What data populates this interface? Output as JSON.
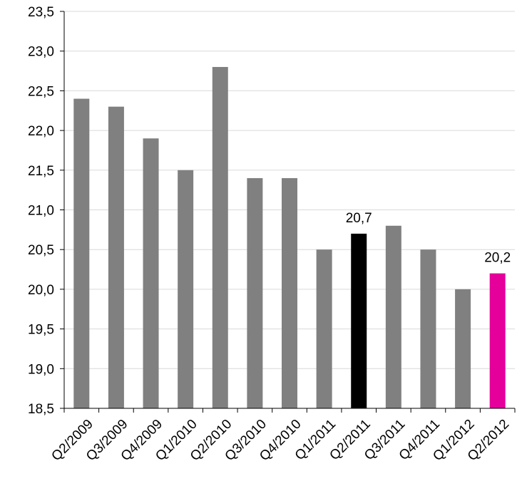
{
  "chart_data": {
    "type": "bar",
    "title": "",
    "xlabel": "",
    "ylabel": "",
    "ylim": [
      18.5,
      23.5
    ],
    "y_ticks": [
      "18,5",
      "19,0",
      "19,5",
      "20,0",
      "20,5",
      "21,0",
      "21,5",
      "22,0",
      "22,5",
      "23,0",
      "23,5"
    ],
    "y_tick_values": [
      18.5,
      19.0,
      19.5,
      20.0,
      20.5,
      21.0,
      21.5,
      22.0,
      22.5,
      23.0,
      23.5
    ],
    "grid": true,
    "legend": "none",
    "categories": [
      "Q2/2009",
      "Q3/2009",
      "Q4/2009",
      "Q1/2010",
      "Q2/2010",
      "Q3/2010",
      "Q4/2010",
      "Q1/2011",
      "Q2/2011",
      "Q3/2011",
      "Q4/2011",
      "Q1/2012",
      "Q2/2012"
    ],
    "values": [
      22.4,
      22.3,
      21.9,
      21.5,
      22.8,
      21.4,
      21.4,
      20.5,
      20.7,
      20.8,
      20.5,
      20.0,
      20.2
    ],
    "bar_colors": [
      "#808080",
      "#808080",
      "#808080",
      "#808080",
      "#808080",
      "#808080",
      "#808080",
      "#808080",
      "#000000",
      "#808080",
      "#808080",
      "#808080",
      "#E6009B"
    ],
    "data_labels": [
      {
        "category": "Q2/2011",
        "text": "20,7"
      },
      {
        "category": "Q2/2012",
        "text": "20,2"
      }
    ],
    "colors": {
      "default_bar": "#808080",
      "highlight_bar": "#000000",
      "accent_bar": "#E6009B",
      "gridline": "#D9D9D9",
      "axis": "#000000"
    }
  }
}
